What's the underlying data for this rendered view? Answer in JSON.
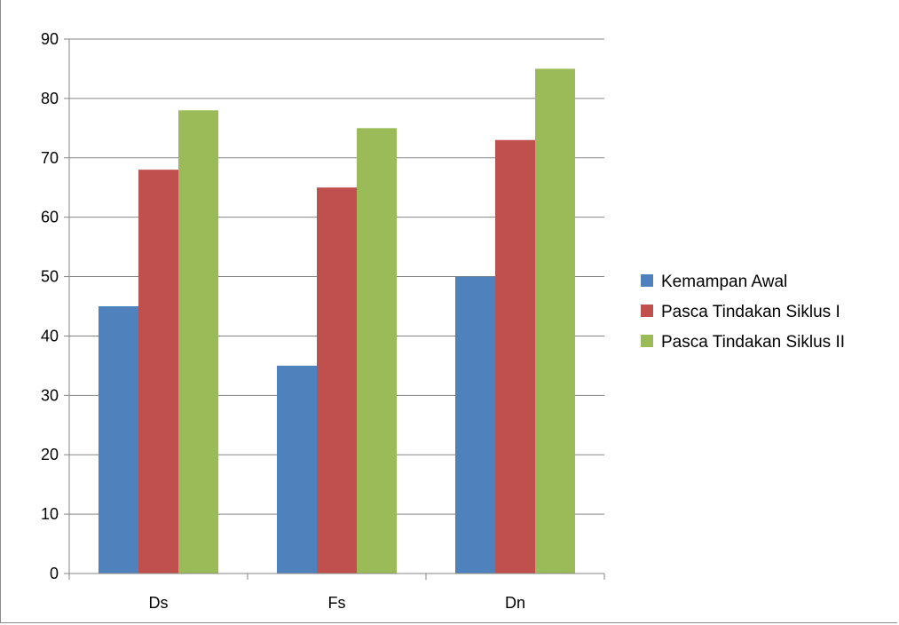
{
  "chart_data": {
    "type": "bar",
    "title": "",
    "xlabel": "",
    "ylabel": "",
    "categories": [
      "Ds",
      "Fs",
      "Dn"
    ],
    "series": [
      {
        "name": "Kemampan Awal",
        "values": [
          45,
          35,
          50
        ],
        "color": "#4f81bd"
      },
      {
        "name": "Pasca Tindakan Siklus I",
        "values": [
          68,
          65,
          73
        ],
        "color": "#c0504d"
      },
      {
        "name": "Pasca Tindakan Siklus II",
        "values": [
          78,
          75,
          85
        ],
        "color": "#9bbb59"
      }
    ],
    "ylim": [
      0,
      90
    ],
    "yticks": [
      "0",
      "10",
      "20",
      "30",
      "40",
      "50",
      "60",
      "70",
      "80",
      "90"
    ],
    "grid": true,
    "legend_position": "right"
  }
}
